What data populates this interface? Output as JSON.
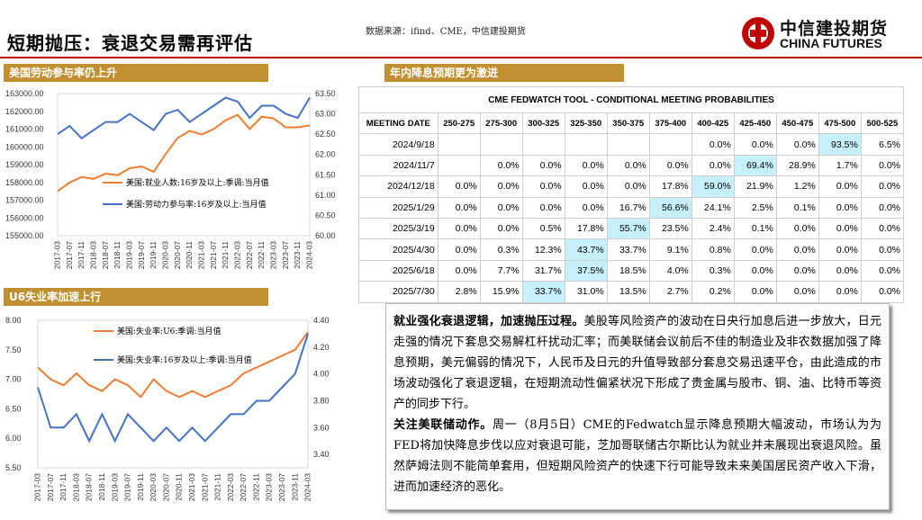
{
  "header": {
    "title": "短期抛压：衰退交易需再评估",
    "source": "数据来源：ifind、CME，中信建投期货",
    "logo_cn": "中信建投期货",
    "logo_en": "CHINA FUTURES",
    "accent": "#c00000"
  },
  "sections": {
    "labor": "美国劳动参与率仍上升",
    "rate_cut": "年内降息预期更为激进",
    "u6": "U6失业率加速上行"
  },
  "cme": {
    "caption": "CME FEDWATCH TOOL - CONDITIONAL MEETING PROBABILITIES",
    "headers": [
      "MEETING DATE",
      "250-275",
      "275-300",
      "300-325",
      "325-350",
      "350-375",
      "375-400",
      "400-425",
      "425-450",
      "450-475",
      "475-500",
      "500-525"
    ],
    "rows": [
      {
        "date": "2024/9/18",
        "cells": [
          "",
          "",
          "",
          "",
          "",
          "",
          "0.0%",
          "0.0%",
          "0.0%",
          "93.5%",
          "6.5%"
        ],
        "hl": 9
      },
      {
        "date": "2024/11/7",
        "cells": [
          "",
          "0.0%",
          "0.0%",
          "0.0%",
          "0.0%",
          "0.0%",
          "0.0%",
          "69.4%",
          "28.9%",
          "1.7%",
          "0.0%"
        ],
        "hl": 7
      },
      {
        "date": "2024/12/18",
        "cells": [
          "0.0%",
          "0.0%",
          "0.0%",
          "0.0%",
          "0.0%",
          "17.8%",
          "59.0%",
          "21.9%",
          "1.2%",
          "0.0%",
          "0.0%"
        ],
        "hl": 6
      },
      {
        "date": "2025/1/29",
        "cells": [
          "0.0%",
          "0.0%",
          "0.0%",
          "0.0%",
          "16.7%",
          "56.6%",
          "24.1%",
          "2.5%",
          "0.1%",
          "0.0%",
          "0.0%"
        ],
        "hl": 5
      },
      {
        "date": "2025/3/19",
        "cells": [
          "0.0%",
          "0.0%",
          "0.5%",
          "17.8%",
          "55.7%",
          "23.5%",
          "2.4%",
          "0.1%",
          "0.0%",
          "0.0%",
          "0.0%"
        ],
        "hl": 4
      },
      {
        "date": "2025/4/30",
        "cells": [
          "0.0%",
          "0.3%",
          "12.3%",
          "43.7%",
          "33.7%",
          "9.1%",
          "0.8%",
          "0.0%",
          "0.0%",
          "0.0%",
          "0.0%"
        ],
        "hl": 3
      },
      {
        "date": "2025/6/18",
        "cells": [
          "0.0%",
          "7.7%",
          "31.7%",
          "37.5%",
          "18.5%",
          "4.0%",
          "0.3%",
          "0.0%",
          "0.0%",
          "0.0%",
          "0.0%"
        ],
        "hl": 3
      },
      {
        "date": "2025/7/30",
        "cells": [
          "2.8%",
          "15.9%",
          "33.7%",
          "31.0%",
          "13.5%",
          "2.7%",
          "0.2%",
          "0.0%",
          "0.0%",
          "0.0%",
          "0.0%"
        ],
        "hl": 2
      }
    ]
  },
  "text": {
    "p1_bold": "就业强化衰退逻辑，加速抛压过程。",
    "p1": "美股等风险资产的波动在日央行加息后进一步放大，日元走强的情况下套息交易解杠杆扰动汇率；而美联储会议前后不佳的制造业及非农数据加强了降息预期，美元偏弱的情况下，人民币及日元的升值导致部分套息交易迅速平仓，由此造成的市场波动强化了衰退逻辑，在短期流动性偏紧状况下形成了贵金属与股市、铜、油、比特币等资产的同步下行。",
    "p2_bold": "关注美联储动作。",
    "p2": "周一（8月5日）CME的Fedwatch显示降息预期大幅波动，市场认为为FED将加快降息步伐以应对衰退可能，芝加哥联储古尔斯比认为就业并未展现出衰退风险。虽然萨姆法则不能简单套用，但短期风险资产的快速下行可能导致未来美国居民资产收入下滑，进而加速经济的恶化。"
  },
  "chart_data": [
    {
      "type": "line",
      "title": "美国劳动参与率仍上升",
      "categories": [
        "2017-03",
        "2017-07",
        "2017-11",
        "2018-03",
        "2018-07",
        "2018-11",
        "2019-03",
        "2019-07",
        "2019-11",
        "2020-03",
        "2020-07",
        "2020-11",
        "2021-03",
        "2021-07",
        "2021-11",
        "2022-03",
        "2022-07",
        "2022-11",
        "2023-03",
        "2023-07",
        "2023-11",
        "2024-03"
      ],
      "y_left": {
        "ticks": [
          "155000.00",
          "156000.00",
          "157000.00",
          "158000.00",
          "159000.00",
          "160000.00",
          "161000.00",
          "162000.00",
          "163000.00"
        ],
        "ylim": [
          155000,
          163000
        ]
      },
      "y_right": {
        "ticks": [
          "60.00",
          "60.50",
          "61.00",
          "61.50",
          "62.00",
          "62.50",
          "63.00",
          "63.50"
        ],
        "ylim": [
          60,
          63.5
        ]
      },
      "series": [
        {
          "name": "美国:就业人数:16岁及以上:季调:当月值",
          "color": "#ed7d31",
          "axis": "left",
          "values": [
            157500,
            158000,
            158300,
            158200,
            158500,
            158400,
            158800,
            158900,
            158600,
            159600,
            160500,
            160900,
            160700,
            161000,
            161500,
            161800,
            161000,
            161700,
            161600,
            161100,
            161100,
            161200
          ]
        },
        {
          "name": "美国:劳动力参与率:16岁及以上:当月值",
          "color": "#4472c4",
          "axis": "right",
          "values": [
            62.5,
            62.7,
            62.4,
            62.6,
            62.8,
            62.8,
            63.0,
            62.8,
            62.6,
            63.0,
            63.1,
            62.8,
            63.0,
            63.2,
            63.4,
            63.3,
            62.9,
            63.2,
            63.2,
            63.0,
            62.9,
            63.4
          ]
        }
      ]
    },
    {
      "type": "line",
      "title": "U6失业率加速上行",
      "categories": [
        "2017-03",
        "2017-07",
        "2017-11",
        "2018-03",
        "2018-07",
        "2018-11",
        "2019-03",
        "2019-07",
        "2019-11",
        "2020-03",
        "2020-07",
        "2020-11",
        "2021-03",
        "2021-07",
        "2021-11",
        "2022-03",
        "2022-07",
        "2022-11",
        "2023-03",
        "2023-07",
        "2023-11",
        "2024-03"
      ],
      "y_left": {
        "ticks": [
          "5.50",
          "6.00",
          "6.50",
          "7.00",
          "7.50",
          "8.00"
        ],
        "ylim": [
          5.5,
          8.0
        ]
      },
      "y_right": {
        "ticks": [
          "3.40",
          "3.60",
          "3.80",
          "4.00",
          "4.20",
          "4.40"
        ],
        "ylim": [
          3.3,
          4.4
        ]
      },
      "series": [
        {
          "name": "美国:失业率:U6:季调:当月值",
          "color": "#ed7d31",
          "axis": "left",
          "values": [
            7.2,
            7.0,
            6.9,
            7.1,
            6.9,
            6.8,
            7.0,
            6.9,
            6.7,
            7.0,
            6.8,
            6.7,
            6.8,
            6.7,
            6.8,
            6.9,
            7.1,
            7.2,
            7.3,
            7.4,
            7.5,
            7.8
          ]
        },
        {
          "name": "美国:失业率:16岁及以上:季调:当月值",
          "color": "#4472c4",
          "axis": "right",
          "values": [
            3.9,
            3.6,
            3.6,
            3.7,
            3.5,
            3.7,
            3.5,
            3.7,
            3.6,
            3.5,
            3.6,
            3.5,
            3.6,
            3.5,
            3.6,
            3.7,
            3.7,
            3.8,
            3.8,
            3.9,
            4.0,
            4.3
          ]
        }
      ]
    }
  ]
}
